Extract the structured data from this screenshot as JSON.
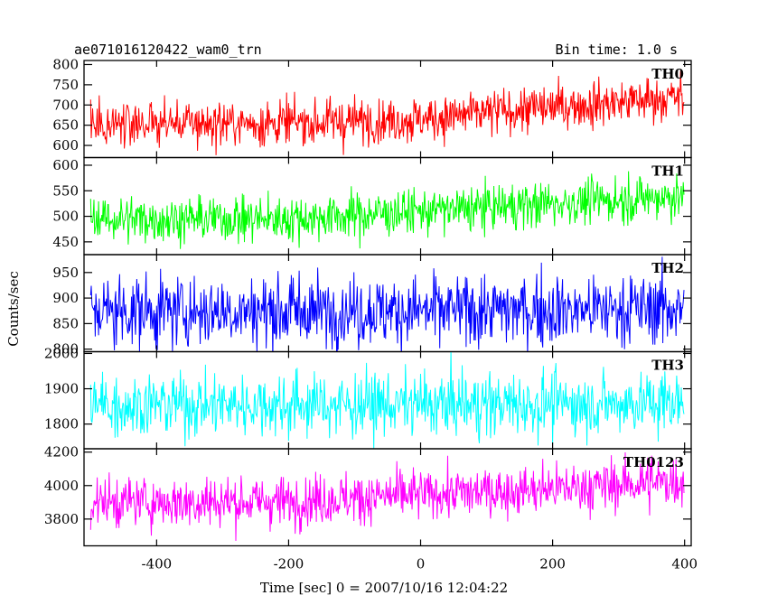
{
  "header": {
    "left_title": "ae071016120422_wam0_trn",
    "right_title": "Bin time: 1.0 s"
  },
  "chart_data": {
    "type": "line",
    "xlabel": "Time [sec] 0 = 2007/10/16 12:04:22",
    "ylabel": "Counts/sec",
    "xlim": [
      -510,
      410
    ],
    "x_ticks": [
      -400,
      -200,
      0,
      200,
      400
    ],
    "sampling": {
      "x_start": -500,
      "x_end": 399,
      "step": 1
    },
    "panels": [
      {
        "name": "TH0",
        "color": "#ff0000",
        "ylim": [
          570,
          810
        ],
        "y_ticks": [
          600,
          650,
          700,
          750,
          800
        ],
        "trend": [
          [
            -500,
            655
          ],
          [
            -200,
            655
          ],
          [
            0,
            665
          ],
          [
            200,
            695
          ],
          [
            400,
            720
          ]
        ],
        "noise": 28
      },
      {
        "name": "TH1",
        "color": "#00ff00",
        "ylim": [
          425,
          615
        ],
        "y_ticks": [
          450,
          500,
          550,
          600
        ],
        "trend": [
          [
            -500,
            495
          ],
          [
            -200,
            495
          ],
          [
            0,
            510
          ],
          [
            200,
            525
          ],
          [
            400,
            540
          ]
        ],
        "noise": 22
      },
      {
        "name": "TH2",
        "color": "#0000ff",
        "ylim": [
          795,
          985
        ],
        "y_ticks": [
          800,
          850,
          900,
          950
        ],
        "trend": [
          [
            -500,
            875
          ],
          [
            0,
            875
          ],
          [
            400,
            880
          ]
        ],
        "noise": 35
      },
      {
        "name": "TH3",
        "color": "#00ffff",
        "ylim": [
          1730,
          2005
        ],
        "y_ticks": [
          1800,
          1900,
          2000
        ],
        "trend": [
          [
            -500,
            1855
          ],
          [
            0,
            1855
          ],
          [
            400,
            1860
          ]
        ],
        "noise": 45
      },
      {
        "name": "TH0123",
        "color": "#ff00ff",
        "ylim": [
          3640,
          4220
        ],
        "y_ticks": [
          3800,
          4000,
          4200
        ],
        "trend": [
          [
            -500,
            3900
          ],
          [
            -200,
            3905
          ],
          [
            0,
            3945
          ],
          [
            200,
            3980
          ],
          [
            400,
            4030
          ]
        ],
        "noise": 75
      }
    ]
  }
}
